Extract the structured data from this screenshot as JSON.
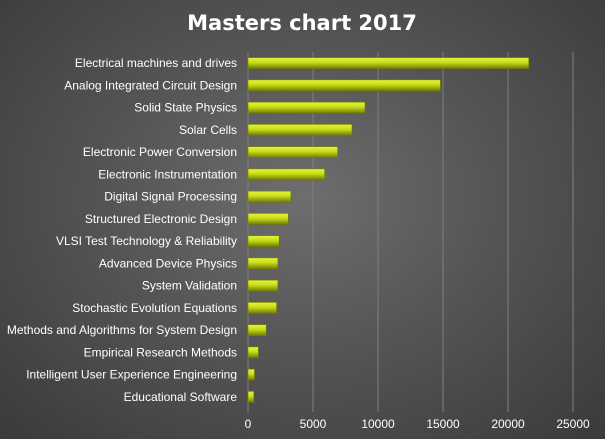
{
  "chart_data": {
    "type": "bar",
    "orientation": "horizontal",
    "title": "Masters chart 2017",
    "xlabel": "",
    "ylabel": "",
    "categories": [
      "Electrical machines and drives",
      "Analog Integrated Circuit Design",
      "Solid State Physics",
      "Solar Cells",
      "Electronic Power Conversion",
      "Electronic Instrumentation",
      "Digital Signal Processing",
      "Structured Electronic Design",
      "VLSI Test Technology & Reliability",
      "Advanced Device Physics",
      "System Validation",
      "Stochastic Evolution Equations",
      "Methods and Algorithms for System Design",
      "Empirical Research Methods",
      "Intelligent User Experience Engineering",
      "Educational Software"
    ],
    "values": [
      21600,
      14800,
      9000,
      8000,
      6900,
      5900,
      3300,
      3100,
      2400,
      2300,
      2300,
      2200,
      1400,
      800,
      500,
      450
    ],
    "xlim": [
      0,
      25000
    ],
    "xticks": [
      "0",
      "5000",
      "10000",
      "15000",
      "20000",
      "25000"
    ],
    "grid": true,
    "legend": "none",
    "colors": {
      "bar_light": "#e6f53a",
      "bar_mid": "#c8dc18",
      "bar_dark": "#6f7c06",
      "background_center": "#6e6e6e",
      "background_edge": "#3a3a3a",
      "text": "#ffffff"
    }
  }
}
